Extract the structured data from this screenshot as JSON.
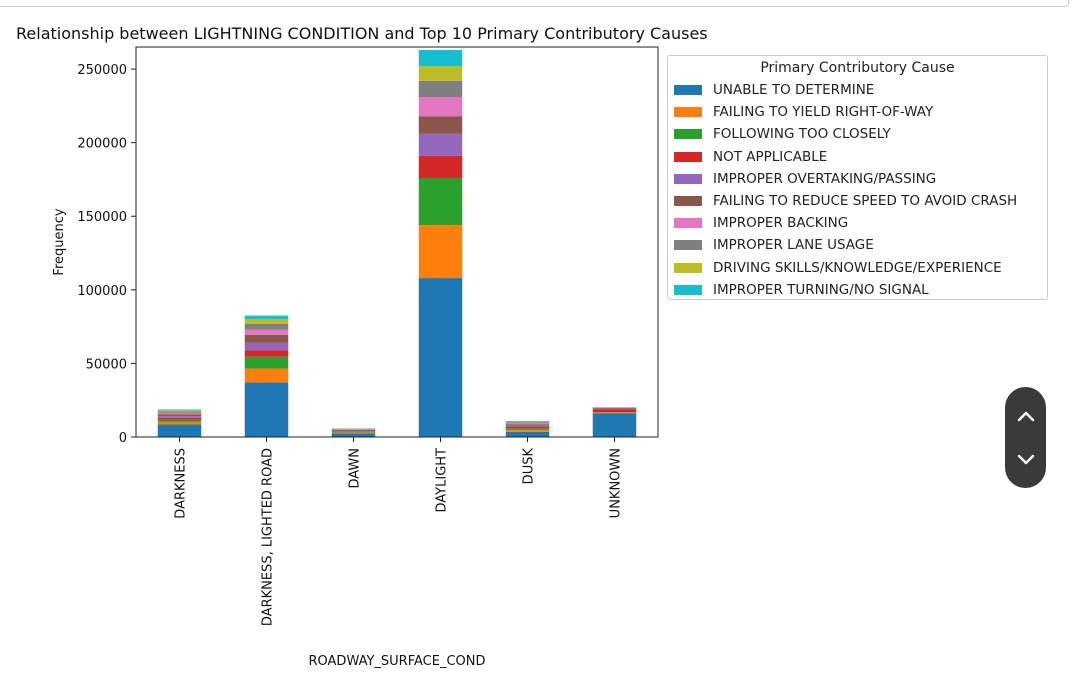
{
  "chart_data": {
    "type": "bar",
    "stacked": true,
    "title": "Relationship between LIGHTNING CONDITION  and Top 10 Primary Contributory Causes",
    "xlabel": "ROADWAY_SURFACE_COND",
    "ylabel": "Frequency",
    "ylim": [
      0,
      265000
    ],
    "yticks": [
      0,
      50000,
      100000,
      150000,
      200000,
      250000
    ],
    "categories": [
      "DARKNESS",
      "DARKNESS, LIGHTED ROAD",
      "DAWN",
      "DAYLIGHT",
      "DUSK",
      "UNKNOWN"
    ],
    "legend": {
      "title": "Primary Contributory Cause",
      "placement": "outside-right"
    },
    "grid": false,
    "series": [
      {
        "name": "UNABLE TO DETERMINE",
        "color": "#1f77b4",
        "values": [
          8500,
          37000,
          2500,
          108000,
          3500,
          16000
        ]
      },
      {
        "name": "FAILING TO YIELD RIGHT-OF-WAY",
        "color": "#ff7f0e",
        "values": [
          1800,
          9500,
          600,
          36000,
          1300,
          500
        ]
      },
      {
        "name": "FOLLOWING TOO CLOSELY",
        "color": "#2ca02c",
        "values": [
          1500,
          8000,
          500,
          32000,
          1100,
          400
        ]
      },
      {
        "name": "NOT APPLICABLE",
        "color": "#d62728",
        "values": [
          1200,
          4500,
          400,
          15000,
          900,
          2000
        ]
      },
      {
        "name": "IMPROPER OVERTAKING/PASSING",
        "color": "#9467bd",
        "values": [
          1200,
          5000,
          400,
          15000,
          900,
          300
        ]
      },
      {
        "name": "FAILING TO REDUCE SPEED TO AVOID CRASH",
        "color": "#8c564b",
        "values": [
          1300,
          5500,
          500,
          12000,
          1000,
          500
        ]
      },
      {
        "name": "IMPROPER BACKING",
        "color": "#e377c2",
        "values": [
          900,
          3500,
          300,
          13000,
          600,
          200
        ]
      },
      {
        "name": "IMPROPER LANE USAGE",
        "color": "#7f7f7f",
        "values": [
          900,
          4000,
          300,
          11000,
          600,
          200
        ]
      },
      {
        "name": "DRIVING SKILLS/KNOWLEDGE/EXPERIENCE",
        "color": "#bcbd22",
        "values": [
          800,
          3000,
          200,
          10000,
          500,
          100
        ]
      },
      {
        "name": "IMPROPER TURNING/NO SIGNAL",
        "color": "#17becf",
        "values": [
          600,
          2500,
          200,
          11000,
          500,
          100
        ]
      }
    ]
  },
  "nav": {
    "up_icon": "chevron-up-icon",
    "down_icon": "chevron-down-icon"
  }
}
